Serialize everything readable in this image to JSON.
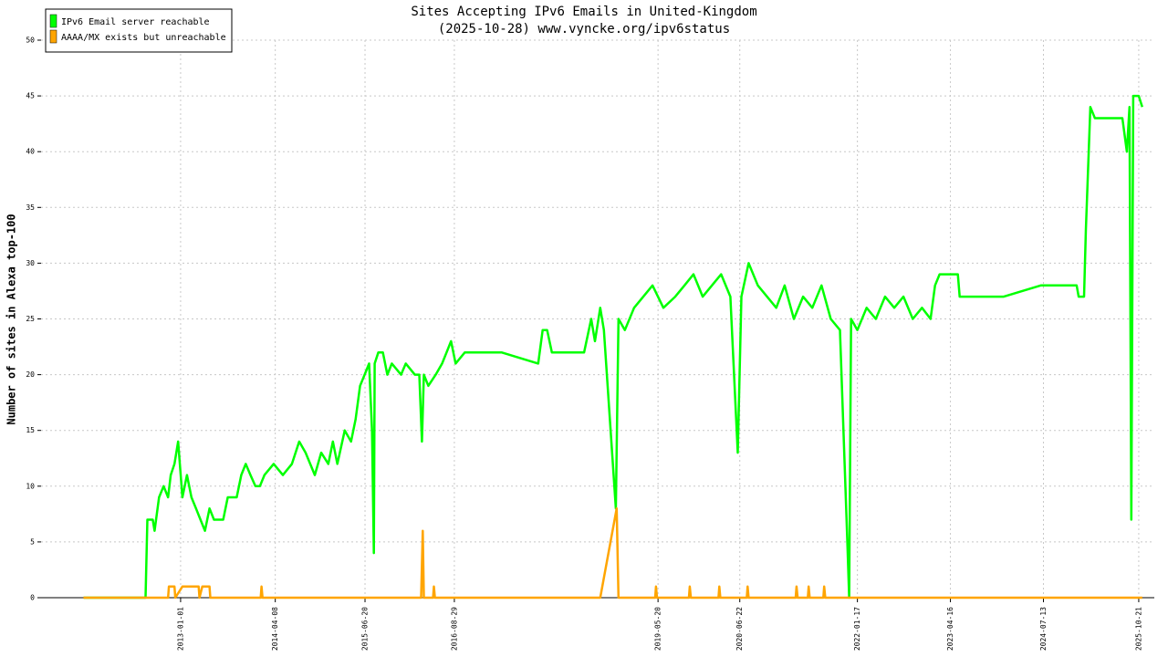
{
  "chart_data": {
    "type": "line",
    "title": "Sites Accepting IPv6 Emails in United-Kingdom",
    "subtitle": "(2025-10-28) www.vyncke.org/ipv6status",
    "y_label": "Number of sites in Alexa top-100",
    "legend": "top-left",
    "grid": true,
    "xlim": [
      "2011-02-20",
      "2026-01-05"
    ],
    "xticks": [
      "2013-01-01",
      "2014-04-08",
      "2015-06-20",
      "2016-08-29",
      "2019-05-20",
      "2020-06-22",
      "2022-01-17",
      "2023-04-16",
      "2024-07-13",
      "2025-10-21"
    ],
    "ylim": [
      0,
      50
    ],
    "yticks": [
      0,
      5,
      10,
      15,
      20,
      25,
      30,
      35,
      40,
      45,
      50
    ],
    "series": [
      {
        "name": "IPv6 Email server reachable",
        "color": "#00ff00",
        "x": [
          "2011-09-15",
          "2012-07-14",
          "2012-07-23",
          "2012-08-18",
          "2012-08-27",
          "2012-09-18",
          "2012-10-10",
          "2012-11-01",
          "2012-11-14",
          "2012-12-02",
          "2012-12-20",
          "2013-01-10",
          "2013-02-01",
          "2013-02-23",
          "2013-03-17",
          "2013-04-08",
          "2013-04-30",
          "2013-05-22",
          "2013-06-13",
          "2013-07-28",
          "2013-08-19",
          "2013-10-02",
          "2013-10-24",
          "2013-11-15",
          "2013-12-08",
          "2014-01-01",
          "2014-01-23",
          "2014-02-14",
          "2014-03-31",
          "2014-05-15",
          "2014-06-28",
          "2014-08-03",
          "2014-09-03",
          "2014-10-18",
          "2014-11-18",
          "2014-12-23",
          "2015-01-14",
          "2015-02-05",
          "2015-03-13",
          "2015-04-13",
          "2015-05-05",
          "2015-05-27",
          "2015-06-18",
          "2015-07-10",
          "2015-07-24",
          "2015-08-02",
          "2015-08-06",
          "2015-08-24",
          "2015-09-15",
          "2015-10-07",
          "2015-10-29",
          "2015-12-13",
          "2016-01-05",
          "2016-02-18",
          "2016-03-11",
          "2016-03-24",
          "2016-04-02",
          "2016-04-24",
          "2016-05-30",
          "2016-06-30",
          "2016-07-22",
          "2016-08-13",
          "2016-09-04",
          "2016-10-19",
          "2017-04-16",
          "2017-10-12",
          "2017-11-03",
          "2017-11-25",
          "2017-12-18",
          "2018-05-24",
          "2018-06-28",
          "2018-07-16",
          "2018-08-11",
          "2018-08-29",
          "2018-10-26",
          "2018-11-08",
          "2018-12-09",
          "2019-01-23",
          "2019-03-09",
          "2019-04-23",
          "2019-06-15",
          "2019-08-12",
          "2019-09-26",
          "2019-11-09",
          "2019-12-24",
          "2020-02-07",
          "2020-03-23",
          "2020-05-07",
          "2020-06-12",
          "2020-06-30",
          "2020-08-04",
          "2020-09-18",
          "2020-11-02",
          "2020-12-17",
          "2021-01-27",
          "2021-03-13",
          "2021-04-27",
          "2021-06-11",
          "2021-07-26",
          "2021-09-09",
          "2021-10-24",
          "2021-11-29",
          "2021-12-08",
          "2021-12-17",
          "2022-01-17",
          "2022-03-03",
          "2022-04-17",
          "2022-06-01",
          "2022-07-16",
          "2022-08-30",
          "2022-10-14",
          "2022-11-28",
          "2023-01-09",
          "2023-01-31",
          "2023-02-22",
          "2023-05-22",
          "2023-05-31",
          "2024-01-01",
          "2024-06-30",
          "2024-12-22",
          "2025-01-01",
          "2025-01-27",
          "2025-02-05",
          "2025-02-27",
          "2025-03-21",
          "2025-08-02",
          "2025-08-24",
          "2025-09-06",
          "2025-09-15",
          "2025-09-24",
          "2025-10-21",
          "2025-11-07"
        ],
        "values": [
          0,
          0,
          7,
          7,
          6,
          9,
          10,
          9,
          11,
          12,
          14,
          9,
          11,
          9,
          8,
          7,
          6,
          8,
          7,
          7,
          9,
          9,
          11,
          12,
          11,
          10,
          10,
          11,
          12,
          11,
          12,
          14,
          13,
          11,
          13,
          12,
          14,
          12,
          15,
          14,
          16,
          19,
          20,
          21,
          15,
          4,
          21,
          22,
          22,
          20,
          21,
          20,
          21,
          20,
          20,
          14,
          20,
          19,
          20,
          21,
          22,
          23,
          21,
          22,
          22,
          21,
          24,
          24,
          22,
          22,
          25,
          23,
          26,
          24,
          8,
          25,
          24,
          26,
          27,
          28,
          26,
          27,
          28,
          29,
          27,
          28,
          29,
          27,
          13,
          27,
          30,
          28,
          27,
          26,
          28,
          25,
          27,
          26,
          28,
          25,
          24,
          5,
          0,
          25,
          24,
          26,
          25,
          27,
          26,
          27,
          25,
          26,
          25,
          28,
          29,
          29,
          27,
          27,
          28,
          28,
          27,
          27,
          33,
          44,
          43,
          43,
          40,
          44,
          7,
          45,
          45,
          44
        ]
      },
      {
        "name": "AAAA/MX exists but unreachable",
        "color": "#ffa500",
        "x": [
          "2011-09-15",
          "2012-11-01",
          "2012-11-05",
          "2012-12-02",
          "2012-12-06",
          "2013-01-10",
          "2013-03-30",
          "2013-04-03",
          "2013-04-17",
          "2013-05-22",
          "2013-05-26",
          "2014-01-27",
          "2014-01-31",
          "2014-02-05",
          "2016-03-20",
          "2016-03-28",
          "2016-04-02",
          "2016-05-17",
          "2016-05-21",
          "2016-05-26",
          "2018-08-11",
          "2018-10-30",
          "2018-11-08",
          "2019-05-06",
          "2019-05-10",
          "2019-05-15",
          "2019-10-18",
          "2019-10-22",
          "2019-10-27",
          "2020-03-10",
          "2020-03-14",
          "2020-03-19",
          "2020-07-26",
          "2020-07-30",
          "2020-08-04",
          "2021-03-22",
          "2021-03-26",
          "2021-03-31",
          "2021-05-20",
          "2021-05-24",
          "2021-05-29",
          "2021-08-04",
          "2021-08-08",
          "2021-08-13",
          "2025-11-07"
        ],
        "values": [
          0,
          0,
          1,
          1,
          0,
          1,
          1,
          0,
          1,
          1,
          0,
          0,
          1,
          0,
          0,
          6,
          0,
          0,
          1,
          0,
          0,
          8,
          0,
          0,
          1,
          0,
          0,
          1,
          0,
          0,
          1,
          0,
          0,
          1,
          0,
          0,
          1,
          0,
          0,
          1,
          0,
          0,
          1,
          0,
          0
        ]
      }
    ]
  }
}
